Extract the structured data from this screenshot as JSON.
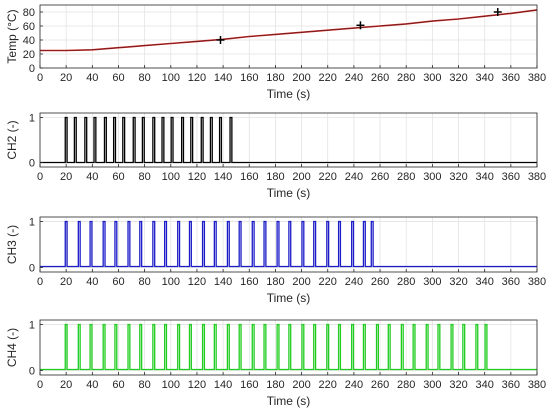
{
  "chart_data": [
    {
      "type": "line",
      "xlabel": "Time (s)",
      "ylabel": "Temp (°C)",
      "xlim": [
        0,
        380
      ],
      "ylim": [
        0,
        90
      ],
      "xticks": [
        0,
        20,
        40,
        60,
        80,
        100,
        120,
        140,
        160,
        180,
        200,
        220,
        240,
        260,
        280,
        300,
        320,
        340,
        360,
        380
      ],
      "yticks": [
        0,
        20,
        40,
        60,
        80
      ],
      "grid": true,
      "series": [
        {
          "color": "#cc2020",
          "x": [
            0,
            20,
            40,
            60,
            80,
            100,
            120,
            140,
            160,
            180,
            200,
            220,
            240,
            260,
            280,
            300,
            320,
            340,
            360,
            380
          ],
          "y": [
            25,
            25,
            26,
            29,
            32,
            35,
            38,
            41,
            45,
            48,
            51,
            54,
            57,
            60,
            63,
            67,
            70,
            74,
            78,
            83
          ]
        }
      ],
      "markers": {
        "symbol": "+",
        "color": "#000000",
        "x": [
          138,
          245,
          350
        ],
        "y": [
          40,
          61,
          80
        ]
      }
    },
    {
      "type": "line",
      "xlabel": "Time (s)",
      "ylabel": "CH2 (-)",
      "xlim": [
        0,
        380
      ],
      "ylim": [
        -0.1,
        1.1
      ],
      "xticks": [
        0,
        20,
        40,
        60,
        80,
        100,
        120,
        140,
        160,
        180,
        200,
        220,
        240,
        260,
        280,
        300,
        320,
        340,
        360,
        380
      ],
      "yticks": [
        0,
        1
      ],
      "grid": true,
      "series": [
        {
          "color": "#000000",
          "pulse_times": [
            20,
            27,
            35,
            42,
            50,
            57,
            64,
            72,
            79,
            87,
            94,
            101,
            109,
            116,
            124,
            131,
            138,
            146
          ],
          "baseline": 0,
          "peak": 1
        }
      ]
    },
    {
      "type": "line",
      "xlabel": "Time (s)",
      "ylabel": "CH3 (-)",
      "xlim": [
        0,
        380
      ],
      "ylim": [
        -0.1,
        1.1
      ],
      "xticks": [
        0,
        20,
        40,
        60,
        80,
        100,
        120,
        140,
        160,
        180,
        200,
        220,
        240,
        260,
        280,
        300,
        320,
        340,
        360,
        380
      ],
      "yticks": [
        0,
        1
      ],
      "grid": true,
      "series": [
        {
          "color": "#1c1cc8",
          "pulse_times": [
            20,
            30,
            39,
            49,
            58,
            68,
            77,
            87,
            96,
            106,
            115,
            125,
            134,
            144,
            153,
            163,
            172,
            182,
            191,
            201,
            210,
            220,
            229,
            239,
            248,
            254
          ],
          "baseline": 0.02,
          "peak": 1
        }
      ]
    },
    {
      "type": "line",
      "xlabel": "Time (s)",
      "ylabel": "CH4 (-)",
      "xlim": [
        0,
        380
      ],
      "ylim": [
        -0.1,
        1.1
      ],
      "xticks": [
        0,
        20,
        40,
        60,
        80,
        100,
        120,
        140,
        160,
        180,
        200,
        220,
        240,
        260,
        280,
        300,
        320,
        340,
        360,
        380
      ],
      "yticks": [
        0,
        1
      ],
      "grid": true,
      "series": [
        {
          "color": "#1fcc1f",
          "pulse_times": [
            20,
            30,
            39,
            49,
            58,
            68,
            77,
            87,
            96,
            106,
            115,
            125,
            134,
            144,
            153,
            163,
            172,
            182,
            191,
            201,
            210,
            220,
            229,
            239,
            248,
            258,
            267,
            277,
            286,
            296,
            305,
            315,
            324,
            334,
            341
          ],
          "baseline": 0.02,
          "peak": 1
        }
      ]
    }
  ]
}
